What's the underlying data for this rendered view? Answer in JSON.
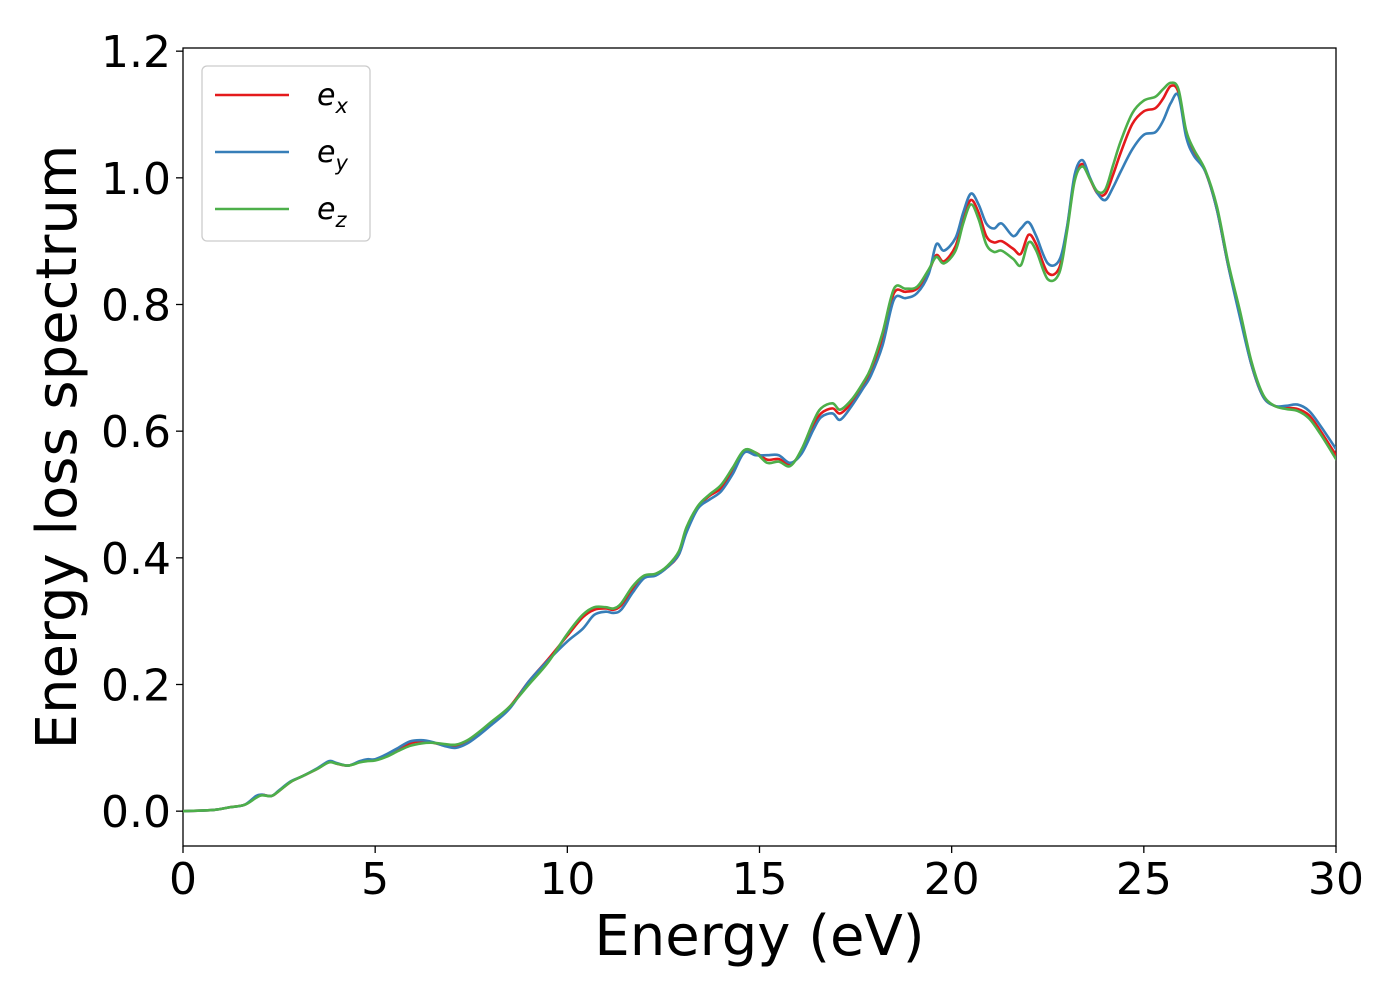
{
  "chart_data": {
    "type": "line",
    "xlabel": "Energy (eV)",
    "ylabel": "Energy loss spectrum",
    "xlim": [
      0,
      30
    ],
    "ylim": [
      -0.055,
      1.205
    ],
    "xticks": [
      0,
      5,
      10,
      15,
      20,
      25,
      30
    ],
    "xtick_labels": [
      "0",
      "5",
      "10",
      "15",
      "20",
      "25",
      "30"
    ],
    "yticks": [
      0.0,
      0.2,
      0.4,
      0.6,
      0.8,
      1.0,
      1.2
    ],
    "ytick_labels": [
      "0.0",
      "0.2",
      "0.4",
      "0.6",
      "0.8",
      "1.0",
      "1.2"
    ],
    "grid": false,
    "legend_position": "top-left",
    "series": [
      {
        "name": "e",
        "subscript": "x",
        "color": "#e41a1c",
        "x": [
          0,
          0.8,
          1.2,
          1.6,
          1.9,
          2.05,
          2.3,
          2.5,
          2.8,
          3.1,
          3.5,
          3.8,
          4.0,
          4.3,
          4.6,
          4.8,
          5.0,
          5.3,
          5.6,
          5.9,
          6.2,
          6.5,
          6.8,
          7.1,
          7.4,
          7.7,
          8.0,
          8.5,
          9.0,
          9.5,
          10.0,
          10.4,
          10.7,
          11.0,
          11.2,
          11.4,
          11.7,
          12.0,
          12.3,
          12.6,
          12.9,
          13.1,
          13.4,
          13.7,
          14.0,
          14.3,
          14.6,
          14.9,
          15.2,
          15.5,
          15.8,
          16.1,
          16.4,
          16.6,
          16.9,
          17.1,
          17.4,
          17.7,
          17.9,
          18.2,
          18.5,
          18.8,
          19.1,
          19.4,
          19.6,
          19.8,
          20.1,
          20.3,
          20.5,
          20.7,
          20.9,
          21.1,
          21.3,
          21.6,
          21.8,
          22.0,
          22.2,
          22.5,
          22.8,
          23.0,
          23.2,
          23.4,
          23.6,
          23.8,
          24.0,
          24.2,
          24.4,
          24.7,
          25.0,
          25.3,
          25.5,
          25.7,
          25.9,
          26.1,
          26.3,
          26.6,
          26.9,
          27.2,
          27.5,
          27.8,
          28.1,
          28.4,
          28.7,
          29.0,
          29.3,
          29.6,
          30.0
        ],
        "y": [
          0,
          0.002,
          0.006,
          0.01,
          0.022,
          0.026,
          0.024,
          0.032,
          0.046,
          0.055,
          0.067,
          0.078,
          0.075,
          0.072,
          0.078,
          0.08,
          0.081,
          0.088,
          0.098,
          0.107,
          0.11,
          0.108,
          0.104,
          0.103,
          0.11,
          0.122,
          0.138,
          0.165,
          0.205,
          0.24,
          0.277,
          0.306,
          0.318,
          0.32,
          0.318,
          0.325,
          0.35,
          0.37,
          0.373,
          0.385,
          0.405,
          0.445,
          0.48,
          0.498,
          0.51,
          0.538,
          0.568,
          0.566,
          0.555,
          0.556,
          0.548,
          0.568,
          0.608,
          0.628,
          0.636,
          0.628,
          0.645,
          0.672,
          0.695,
          0.748,
          0.818,
          0.82,
          0.825,
          0.852,
          0.878,
          0.868,
          0.892,
          0.935,
          0.965,
          0.945,
          0.908,
          0.898,
          0.9,
          0.888,
          0.88,
          0.91,
          0.895,
          0.85,
          0.858,
          0.92,
          0.998,
          1.022,
          0.998,
          0.975,
          0.975,
          1.005,
          1.04,
          1.085,
          1.105,
          1.11,
          1.125,
          1.145,
          1.135,
          1.07,
          1.04,
          1.01,
          0.95,
          0.86,
          0.785,
          0.705,
          0.655,
          0.64,
          0.637,
          0.635,
          0.625,
          0.6,
          0.562
        ]
      },
      {
        "name": "e",
        "subscript": "y",
        "color": "#377eb8",
        "x": [
          0,
          0.8,
          1.2,
          1.6,
          1.9,
          2.05,
          2.3,
          2.5,
          2.8,
          3.1,
          3.5,
          3.8,
          4.0,
          4.3,
          4.6,
          4.8,
          5.0,
          5.3,
          5.6,
          5.9,
          6.2,
          6.5,
          6.8,
          7.1,
          7.4,
          7.7,
          8.0,
          8.5,
          9.0,
          9.5,
          10.0,
          10.4,
          10.7,
          11.0,
          11.2,
          11.4,
          11.7,
          12.0,
          12.3,
          12.6,
          12.9,
          13.1,
          13.4,
          13.7,
          14.0,
          14.3,
          14.6,
          14.9,
          15.2,
          15.5,
          15.8,
          16.1,
          16.4,
          16.6,
          16.9,
          17.1,
          17.4,
          17.7,
          17.9,
          18.2,
          18.5,
          18.8,
          19.1,
          19.4,
          19.6,
          19.8,
          20.1,
          20.3,
          20.5,
          20.7,
          20.9,
          21.1,
          21.3,
          21.6,
          21.8,
          22.0,
          22.2,
          22.5,
          22.8,
          23.0,
          23.2,
          23.4,
          23.6,
          23.8,
          24.0,
          24.2,
          24.4,
          24.7,
          25.0,
          25.3,
          25.5,
          25.7,
          25.9,
          26.1,
          26.3,
          26.6,
          26.9,
          27.2,
          27.5,
          27.8,
          28.1,
          28.4,
          28.7,
          29.0,
          29.3,
          29.6,
          30.0
        ],
        "y": [
          0,
          0.002,
          0.006,
          0.01,
          0.024,
          0.026,
          0.024,
          0.033,
          0.047,
          0.055,
          0.068,
          0.079,
          0.076,
          0.072,
          0.079,
          0.082,
          0.082,
          0.09,
          0.1,
          0.11,
          0.112,
          0.109,
          0.103,
          0.1,
          0.107,
          0.12,
          0.135,
          0.162,
          0.205,
          0.238,
          0.268,
          0.288,
          0.31,
          0.315,
          0.313,
          0.318,
          0.345,
          0.368,
          0.372,
          0.385,
          0.405,
          0.44,
          0.478,
          0.492,
          0.505,
          0.532,
          0.566,
          0.562,
          0.562,
          0.562,
          0.55,
          0.565,
          0.602,
          0.622,
          0.628,
          0.618,
          0.64,
          0.668,
          0.688,
          0.735,
          0.808,
          0.81,
          0.818,
          0.848,
          0.895,
          0.885,
          0.905,
          0.945,
          0.975,
          0.958,
          0.928,
          0.92,
          0.928,
          0.908,
          0.92,
          0.93,
          0.908,
          0.865,
          0.87,
          0.922,
          1.005,
          1.028,
          1.0,
          0.975,
          0.965,
          0.985,
          1.01,
          1.045,
          1.068,
          1.072,
          1.09,
          1.118,
          1.13,
          1.065,
          1.035,
          1.01,
          0.95,
          0.86,
          0.78,
          0.705,
          0.655,
          0.64,
          0.64,
          0.642,
          0.632,
          0.608,
          0.572
        ]
      },
      {
        "name": "e",
        "subscript": "z",
        "color": "#4daf4a",
        "x": [
          0,
          0.8,
          1.2,
          1.6,
          1.9,
          2.05,
          2.3,
          2.5,
          2.8,
          3.1,
          3.5,
          3.8,
          4.0,
          4.3,
          4.6,
          4.8,
          5.0,
          5.3,
          5.6,
          5.9,
          6.2,
          6.5,
          6.8,
          7.1,
          7.4,
          7.7,
          8.0,
          8.5,
          9.0,
          9.5,
          10.0,
          10.4,
          10.7,
          11.0,
          11.2,
          11.4,
          11.7,
          12.0,
          12.3,
          12.6,
          12.9,
          13.1,
          13.4,
          13.7,
          14.0,
          14.3,
          14.6,
          14.9,
          15.2,
          15.5,
          15.8,
          16.1,
          16.4,
          16.6,
          16.9,
          17.1,
          17.4,
          17.7,
          17.9,
          18.2,
          18.5,
          18.8,
          19.1,
          19.4,
          19.6,
          19.8,
          20.1,
          20.3,
          20.5,
          20.7,
          20.9,
          21.1,
          21.3,
          21.6,
          21.8,
          22.0,
          22.2,
          22.5,
          22.8,
          23.0,
          23.2,
          23.4,
          23.6,
          23.8,
          24.0,
          24.2,
          24.4,
          24.7,
          25.0,
          25.3,
          25.5,
          25.7,
          25.9,
          26.1,
          26.3,
          26.6,
          26.9,
          27.2,
          27.5,
          27.8,
          28.1,
          28.4,
          28.7,
          29.0,
          29.3,
          29.6,
          30.0
        ],
        "y": [
          0,
          0.002,
          0.006,
          0.01,
          0.021,
          0.025,
          0.024,
          0.032,
          0.046,
          0.055,
          0.067,
          0.077,
          0.075,
          0.072,
          0.077,
          0.079,
          0.08,
          0.086,
          0.095,
          0.103,
          0.107,
          0.108,
          0.106,
          0.105,
          0.112,
          0.125,
          0.14,
          0.165,
          0.2,
          0.235,
          0.28,
          0.31,
          0.322,
          0.322,
          0.32,
          0.328,
          0.355,
          0.372,
          0.375,
          0.387,
          0.41,
          0.448,
          0.482,
          0.5,
          0.515,
          0.542,
          0.57,
          0.566,
          0.55,
          0.552,
          0.545,
          0.572,
          0.615,
          0.636,
          0.644,
          0.634,
          0.65,
          0.677,
          0.7,
          0.755,
          0.825,
          0.825,
          0.828,
          0.855,
          0.875,
          0.865,
          0.885,
          0.928,
          0.958,
          0.935,
          0.895,
          0.883,
          0.885,
          0.872,
          0.862,
          0.898,
          0.885,
          0.84,
          0.85,
          0.915,
          0.995,
          1.018,
          0.998,
          0.978,
          0.982,
          1.02,
          1.058,
          1.102,
          1.122,
          1.128,
          1.14,
          1.15,
          1.14,
          1.075,
          1.045,
          1.012,
          0.955,
          0.865,
          0.79,
          0.71,
          0.658,
          0.64,
          0.635,
          0.632,
          0.62,
          0.595,
          0.556
        ]
      }
    ]
  }
}
